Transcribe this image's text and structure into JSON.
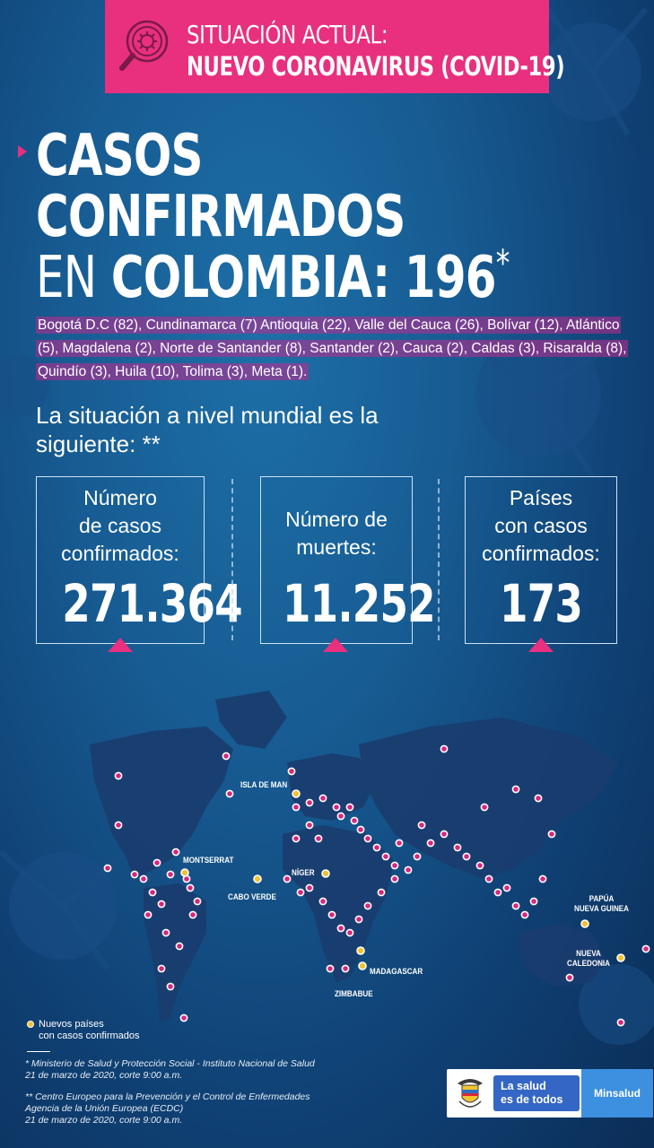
{
  "header": {
    "line1": "SITUACIÓN ACTUAL:",
    "line2": "NUEVO CORONAVIRUS (COVID-19)",
    "icon": "virus-magnifier-icon"
  },
  "title": {
    "line1": "CASOS",
    "line2": "CONFIRMADOS",
    "line3_prefix": "EN",
    "line3_main": "COLOMBIA: 196",
    "line3_mark": "*"
  },
  "departments": "Bogotá D.C (82), Cundinamarca (7) Antioquia (22), Valle del Cauca (26), Bolívar (12), Atlántico (5), Magdalena (2), Norte de Santander (8), Santander (2), Cauca (2), Caldas (3), Risaralda (8), Quindío (3), Huila (10), Tolima (3), Meta (1).",
  "world": {
    "title": "La situación a nivel mundial es la siguiente: **"
  },
  "stats": [
    {
      "label_lines": [
        "Número",
        "de casos",
        "confirmados:"
      ],
      "value": "271.364"
    },
    {
      "label_lines": [
        "Número de",
        "muertes:"
      ],
      "value": "11.252"
    },
    {
      "label_lines": [
        "Países",
        "con casos",
        "confirmados:"
      ],
      "value": "173"
    }
  ],
  "map_labels": {
    "isla_de_man": "ISLA DE MAN",
    "montserrat": "MONTSERRAT",
    "niger": "NÍGER",
    "cabo_verde": "CABO VERDE",
    "papua_line1": "PAPÚA",
    "papua_line2": "NUEVA GUINEA",
    "caledonia_line1": "NUEVA",
    "caledonia_line2": "CALEDONIA",
    "madagascar": "MADAGASCAR",
    "zimbabue": "ZIMBABUE"
  },
  "legend": {
    "line1": "Nuevos países",
    "line2": "con casos confirmados"
  },
  "sources": {
    "s1_line1": "* Ministerio de Salud y Protección Social - Instituto Nacional de Salud",
    "s1_line2": "21 de marzo de 2020, corte 9:00 a.m.",
    "s2_line1": "** Centro Europeo para la Prevención y el Control de Enfermedades",
    "s2_line2": "Agencia de la Unión Europea (ECDC)",
    "s2_line3": "21 de marzo de 2020, corte 9:00 a.m."
  },
  "logo": {
    "slogan_line1": "La salud",
    "slogan_line2": "es de todos",
    "brand": "Minsalud"
  },
  "colors": {
    "accent": "#e8307e",
    "new_country_dot": "#f1c232",
    "case_dot": "#d6277f"
  }
}
